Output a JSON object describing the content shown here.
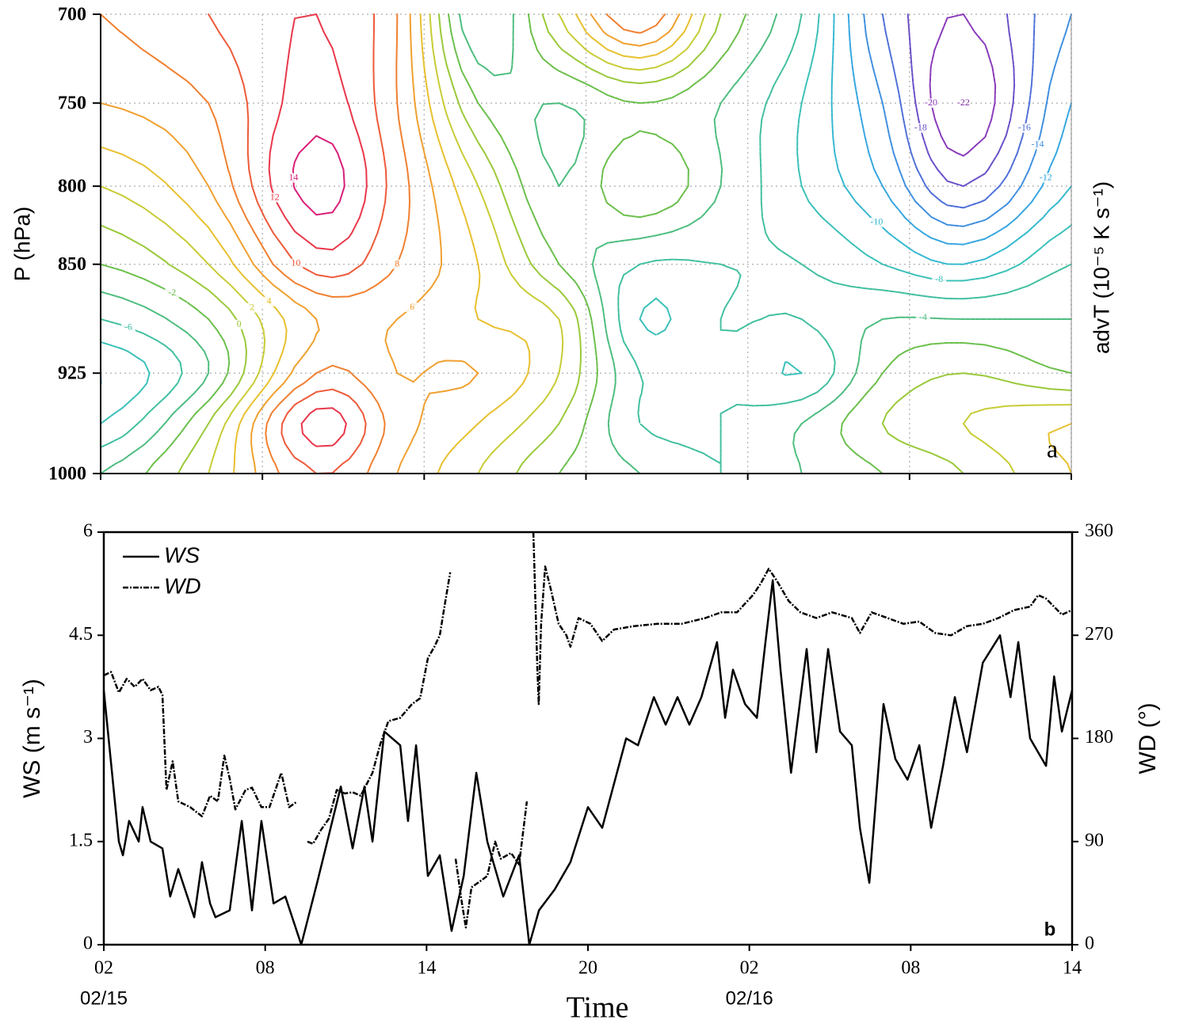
{
  "chart_data": [
    {
      "type": "contour",
      "ylabel": "P (hPa)",
      "zlabel": "advT (10⁻⁵ K s⁻¹)",
      "panel_label": "a",
      "xlim": [
        0,
        36
      ],
      "xticks": [
        0,
        6,
        12,
        18,
        24,
        30,
        36
      ],
      "ylim": [
        1000,
        700
      ],
      "yticks": [
        700,
        750,
        800,
        850,
        925,
        1000
      ],
      "yscale": "log",
      "grid": true,
      "x": [
        0,
        4,
        8,
        11,
        14,
        17,
        20,
        23,
        26,
        29,
        32,
        36
      ],
      "y": [
        700,
        750,
        800,
        850,
        887,
        925,
        962,
        1000
      ],
      "z": [
        [
          8,
          10,
          12,
          8,
          -6,
          2,
          10,
          0,
          -6,
          -16,
          -20,
          -14
        ],
        [
          6,
          8,
          13,
          8,
          -2,
          -4,
          -2,
          -4,
          -8,
          -14,
          -22,
          -12
        ],
        [
          2,
          6,
          15,
          9,
          2,
          -4,
          0,
          -4,
          -8,
          -12,
          -18,
          -10
        ],
        [
          -2,
          2,
          11,
          8,
          4,
          -2,
          -6,
          -6,
          -6,
          -8,
          -10,
          -6
        ],
        [
          -6,
          -2,
          6,
          6,
          4,
          2,
          -8,
          -6,
          -6,
          -4,
          -4,
          -4
        ],
        [
          -10,
          -4,
          8,
          6,
          6,
          2,
          -6,
          -6,
          -8,
          -2,
          0,
          -2
        ],
        [
          -8,
          0,
          13,
          7,
          4,
          0,
          -6,
          -6,
          -4,
          0,
          2,
          4
        ],
        [
          -4,
          2,
          10,
          6,
          2,
          -2,
          -4,
          -6,
          -4,
          -2,
          0,
          4
        ]
      ],
      "levels": [
        -22,
        -20,
        -18,
        -16,
        -14,
        -12,
        -10,
        -8,
        -6,
        -4,
        -2,
        0,
        2,
        4,
        6,
        8,
        10,
        12,
        14
      ],
      "level_colors": [
        "#7b2a9e",
        "#8a3ab9",
        "#6a4fc8",
        "#4f6fd8",
        "#3f8fe0",
        "#36a6e0",
        "#35b8d0",
        "#3ac0b8",
        "#40bfa0",
        "#4cbd7e",
        "#6abf4a",
        "#9ac93a",
        "#c8cc36",
        "#e8c030",
        "#f0a030",
        "#f08030",
        "#ee5a3a",
        "#e8384a",
        "#d8207a"
      ],
      "negative_dashed": true
    },
    {
      "type": "line",
      "panel_label": "b",
      "xlabel": "Time",
      "ylabel": "WS (m s⁻¹)",
      "y2label": "WD (°)",
      "xlim": [
        0,
        36
      ],
      "xticks": [
        {
          "value": 0,
          "label": "02"
        },
        {
          "value": 6,
          "label": "08"
        },
        {
          "value": 12,
          "label": "14"
        },
        {
          "value": 18,
          "label": "20"
        },
        {
          "value": 24,
          "label": "02"
        },
        {
          "value": 30,
          "label": "08"
        },
        {
          "value": 36,
          "label": "14"
        }
      ],
      "date_labels": [
        {
          "value": 0,
          "label": "02/15"
        },
        {
          "value": 24,
          "label": "02/16"
        }
      ],
      "ylim": [
        0,
        6
      ],
      "yticks": [
        0,
        1.5,
        3,
        4.5,
        6
      ],
      "y2lim": [
        0,
        360
      ],
      "y2ticks": [
        0,
        90,
        180,
        270,
        360
      ],
      "legend": "upper-left",
      "series": [
        {
          "name": "WS",
          "color": "#000000",
          "dash": "solid",
          "x": [
            0,
            0.56,
            0.71,
            0.94,
            1.3,
            1.44,
            1.74,
            2.18,
            2.47,
            2.77,
            3.36,
            3.65,
            3.95,
            4.15,
            4.68,
            5.13,
            5.51,
            5.86,
            6.31,
            6.75,
            7.34,
            7.93,
            8.81,
            9.25,
            9.69,
            9.99,
            10.43,
            11.02,
            11.31,
            11.61,
            12.05,
            12.49,
            12.93,
            13.38,
            13.85,
            14.26,
            14.85,
            15.44,
            15.82,
            16.18,
            16.76,
            17.35,
            18.0,
            18.53,
            19.42,
            19.86,
            20.45,
            20.89,
            21.33,
            21.77,
            22.22,
            22.8,
            23.1,
            23.39,
            23.84,
            24.28,
            24.57,
            24.87,
            25.16,
            25.55,
            26.13,
            26.49,
            26.93,
            27.37,
            27.81,
            28.11,
            28.46,
            28.99,
            29.43,
            29.88,
            30.32,
            30.76,
            31.2,
            31.64,
            32.09,
            32.68,
            33.32,
            33.71,
            34.0,
            34.44,
            35.03,
            35.33,
            35.62,
            36
          ],
          "values": [
            3.7,
            1.5,
            1.3,
            1.8,
            1.5,
            2.0,
            1.5,
            1.4,
            0.7,
            1.1,
            0.4,
            1.2,
            0.6,
            0.4,
            0.5,
            1.8,
            0.5,
            1.8,
            0.6,
            0.7,
            0.0,
            0.9,
            2.3,
            1.4,
            2.3,
            1.5,
            3.1,
            2.9,
            1.8,
            2.9,
            1.0,
            1.3,
            0.2,
            1.0,
            2.5,
            1.5,
            0.7,
            1.3,
            0.0,
            0.5,
            0.8,
            1.2,
            2.0,
            1.7,
            3.0,
            2.9,
            3.6,
            3.2,
            3.6,
            3.2,
            3.6,
            4.4,
            3.3,
            4.0,
            3.5,
            3.3,
            4.3,
            5.3,
            4.0,
            2.5,
            4.3,
            2.8,
            4.3,
            3.1,
            2.9,
            1.7,
            0.9,
            3.5,
            2.7,
            2.4,
            2.9,
            1.7,
            2.6,
            3.6,
            2.8,
            4.1,
            4.5,
            3.6,
            4.4,
            3.0,
            2.6,
            3.9,
            3.1,
            3.7
          ]
        },
        {
          "name": "WD",
          "color": "#000000",
          "dash": "dashdot",
          "axis": "y2",
          "x": [
            0,
            0.27,
            0.56,
            0.85,
            1.15,
            1.44,
            1.74,
            2.03,
            2.18,
            2.33,
            2.56,
            2.77,
            3.21,
            3.65,
            3.95,
            4.24,
            4.48,
            4.68,
            4.89,
            5.27,
            5.51,
            5.86,
            6.16,
            6.6,
            6.89,
            7.19,
            7.38,
            7.57,
            7.78,
            8.07,
            8.37,
            8.66,
            8.96,
            9.25,
            9.55,
            9.99,
            10.28,
            10.58,
            11.02,
            11.46,
            11.76,
            12.05,
            12.29,
            12.49,
            12.7,
            12.88,
            12.98,
            13.08,
            13.29,
            13.46,
            13.67,
            13.97,
            14.26,
            14.55,
            14.76,
            15.14,
            15.44,
            15.73,
            15.85,
            15.97,
            16.12,
            16.17,
            16.26,
            16.41,
            16.62,
            16.91,
            17.2,
            17.35,
            17.65,
            18.09,
            18.53,
            18.97,
            19.71,
            20.59,
            21.48,
            22.36,
            22.95,
            23.54,
            24.13,
            24.42,
            24.72,
            25.01,
            25.46,
            25.9,
            26.49,
            27.08,
            27.81,
            28.11,
            28.55,
            29.14,
            29.73,
            30.32,
            30.91,
            31.5,
            32.09,
            32.68,
            33.26,
            33.85,
            34.44,
            34.74,
            35.03,
            35.62,
            36
          ],
          "values": [
            235,
            238,
            220,
            232,
            225,
            232,
            222,
            225,
            218,
            135,
            160,
            125,
            120,
            112,
            130,
            125,
            165,
            145,
            118,
            135,
            137,
            120,
            120,
            150,
            120,
            125,
            null,
            90,
            88,
            100,
            110,
            135,
            132,
            133,
            130,
            150,
            175,
            195,
            198,
            210,
            215,
            250,
            260,
            270,
            300,
            325,
            null,
            75,
            40,
            15,
            50,
            55,
            60,
            90,
            75,
            80,
            70,
            125,
            null,
            360,
            240,
            210,
            280,
            330,
            310,
            280,
            270,
            260,
            285,
            280,
            265,
            275,
            278,
            280,
            280,
            285,
            290,
            290,
            305,
            315,
            328,
            318,
            300,
            290,
            285,
            290,
            285,
            272,
            290,
            285,
            280,
            282,
            272,
            270,
            278,
            280,
            285,
            292,
            295,
            305,
            302,
            288,
            292
          ]
        }
      ]
    }
  ]
}
